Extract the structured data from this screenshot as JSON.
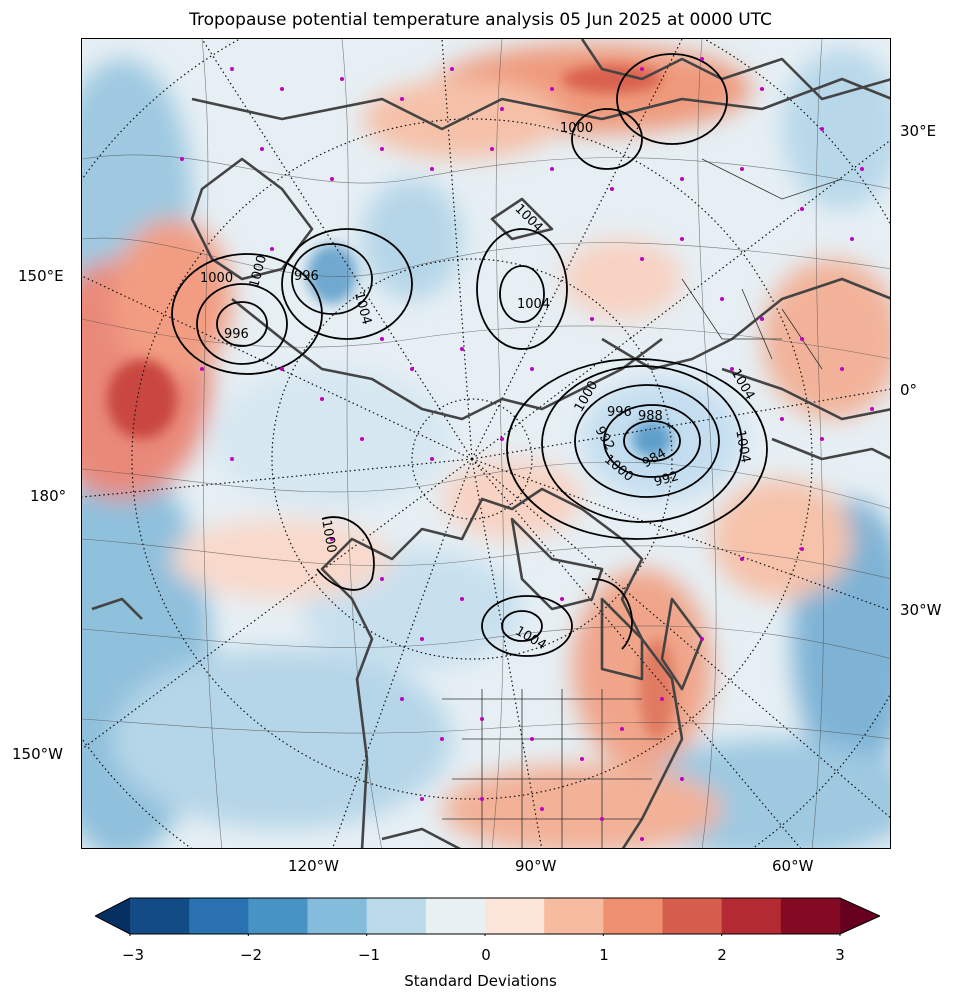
{
  "title": "Tropopause potential temperature analysis 05 Jun 2025 at 0000 UTC",
  "lon_labels": {
    "e30": "30°E",
    "e150": "150°E",
    "zero": "0°",
    "deg180": "180°",
    "w30": "30°W",
    "w150": "150°W",
    "w120": "120°W",
    "w90": "90°W",
    "w60": "60°W"
  },
  "pressure_labels": [
    "1000",
    "1000",
    "996",
    "1004",
    "996",
    "1004",
    "1004",
    "1000",
    "1000",
    "996",
    "988",
    "984",
    "992",
    "1000",
    "1004",
    "992",
    "1004",
    "1000",
    "1004"
  ],
  "colorbar": {
    "label": "Standard Deviations",
    "ticks": [
      "−3",
      "−2",
      "−1",
      "0",
      "1",
      "2",
      "3"
    ],
    "colors": [
      "#053061",
      "#134b87",
      "#2a71b2",
      "#4794c4",
      "#84bcdb",
      "#bbdbea",
      "#e8f0f4",
      "#fbe5d8",
      "#f7bba0",
      "#ef9071",
      "#d55d4c",
      "#b42a33",
      "#820a23",
      "#67001f"
    ]
  },
  "chart_data": {
    "type": "heatmap",
    "title": "Tropopause potential temperature analysis 05 Jun 2025 at 0000 UTC",
    "colorbar_label": "Standard Deviations",
    "range": [
      -3,
      3
    ],
    "levels": [
      -3,
      -2.5,
      -2,
      -1.5,
      -1,
      -0.5,
      0,
      0.5,
      1,
      1.5,
      2,
      2.5,
      3
    ],
    "extend": "both"
  }
}
